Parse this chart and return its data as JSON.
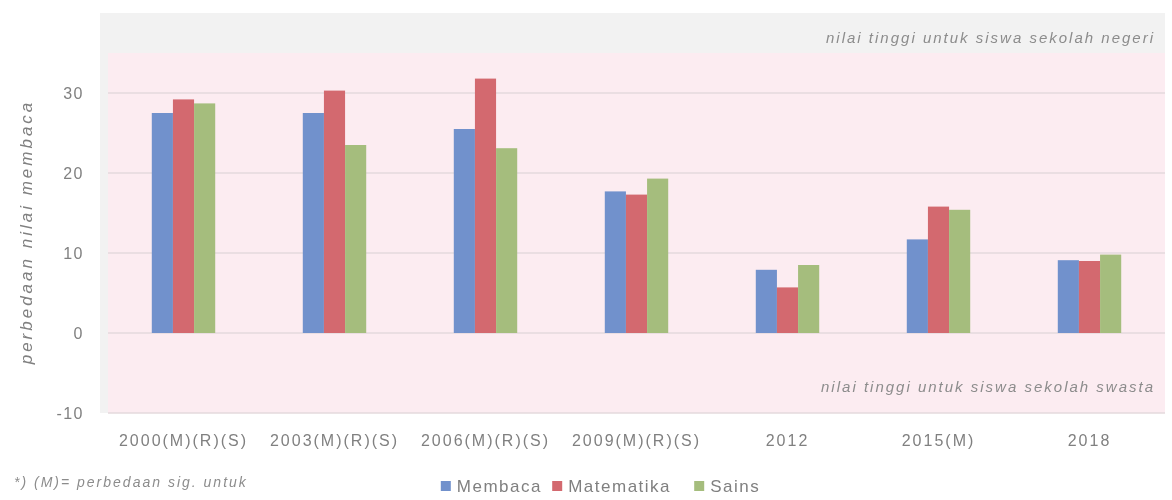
{
  "chart_data": {
    "type": "bar",
    "ylabel": "perbedaan nilai membaca",
    "categories": [
      "2000(M)(R)(S)",
      "2003(M)(R)(S)",
      "2006(M)(R)(S)",
      "2009(M)(R)(S)",
      "2012",
      "2015(M)",
      "2018"
    ],
    "series": [
      {
        "name": "Membaca",
        "color": "#7191cc",
        "values": [
          27.5,
          27.5,
          25.5,
          17.7,
          7.9,
          11.7,
          9.1
        ]
      },
      {
        "name": "Matematika",
        "color": "#d3696f",
        "values": [
          29.2,
          30.3,
          31.8,
          17.3,
          5.7,
          15.8,
          9.0
        ]
      },
      {
        "name": "Sains",
        "color": "#a5bd7d",
        "values": [
          28.7,
          23.5,
          23.1,
          19.3,
          8.5,
          15.4,
          9.8
        ]
      }
    ],
    "ylim": [
      -10,
      40
    ],
    "yticks": [
      -10,
      0,
      10,
      20,
      30
    ],
    "grid": "y",
    "legend": "bottom",
    "bands": [
      {
        "axis": "y",
        "from": -10,
        "to": 35,
        "color": "#fcecf1"
      }
    ],
    "annotations": [
      "nilai tinggi untuk siswa sekolah negeri",
      "nilai tinggi untuk siswa sekolah swasta",
      "*) (M)= perbedaan sig. untuk"
    ]
  }
}
